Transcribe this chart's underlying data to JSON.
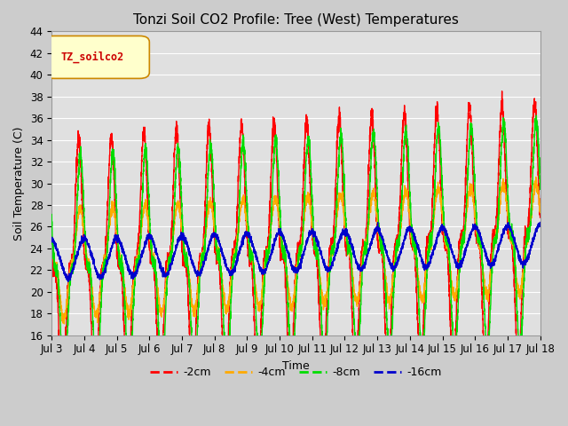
{
  "title": "Tonzi Soil CO2 Profile: Tree (West) Temperatures",
  "xlabel": "Time",
  "ylabel": "Soil Temperature (C)",
  "ylim": [
    16,
    44
  ],
  "yticks": [
    16,
    18,
    20,
    22,
    24,
    26,
    28,
    30,
    32,
    34,
    36,
    38,
    40,
    42,
    44
  ],
  "xtick_labels": [
    "Jul 3",
    "Jul 4",
    "Jul 5",
    "Jul 6",
    "Jul 7",
    "Jul 8",
    "Jul 9",
    "Jul 10",
    "Jul 11",
    "Jul 12",
    "Jul 13",
    "Jul 14",
    "Jul 15",
    "Jul 16",
    "Jul 17",
    "Jul 18"
  ],
  "legend_label": "TZ_soilco2",
  "series_labels": [
    "-2cm",
    "-4cm",
    "-8cm",
    "-16cm"
  ],
  "series_colors": [
    "#ff0000",
    "#ffaa00",
    "#00dd00",
    "#0000cc"
  ],
  "bg_color": "#cccccc",
  "plot_bg_color": "#e0e0e0",
  "grid_color": "#ffffff",
  "linewidth": 1.0
}
